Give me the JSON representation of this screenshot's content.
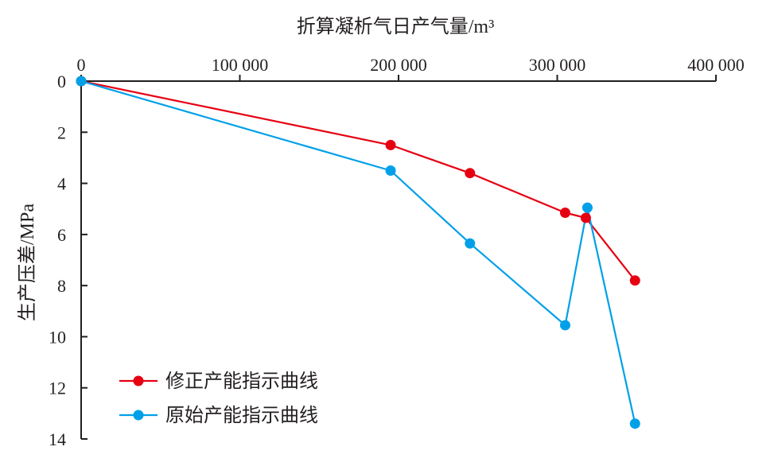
{
  "chart_data": {
    "type": "line",
    "title": "",
    "xlabel": "折算凝析气日产气量/m³",
    "ylabel": "生产压差/MPa",
    "xlim": [
      0,
      400000
    ],
    "ylim": [
      0,
      14
    ],
    "x_axis_position": "top",
    "y_axis_inverted": true,
    "x_ticks": [
      0,
      100000,
      200000,
      300000,
      400000
    ],
    "x_tick_labels": [
      "0",
      "100 000",
      "200 000",
      "300 000",
      "400 000"
    ],
    "y_ticks": [
      0,
      2,
      4,
      6,
      8,
      10,
      12,
      14
    ],
    "y_tick_labels": [
      "0",
      "2",
      "4",
      "6",
      "8",
      "10",
      "12",
      "14"
    ],
    "grid": false,
    "legend_position": "bottom-left",
    "series": [
      {
        "name": "修正产能指示曲线",
        "color": "#e60012",
        "x": [
          0,
          195000,
          245000,
          305000,
          318000,
          349000
        ],
        "y": [
          0,
          2.5,
          3.6,
          5.15,
          5.35,
          7.8
        ]
      },
      {
        "name": "原始产能指示曲线",
        "color": "#00a0e9",
        "x": [
          0,
          195000,
          245000,
          305000,
          319000,
          349000
        ],
        "y": [
          0,
          3.5,
          6.35,
          9.55,
          4.95,
          13.4
        ]
      }
    ]
  }
}
